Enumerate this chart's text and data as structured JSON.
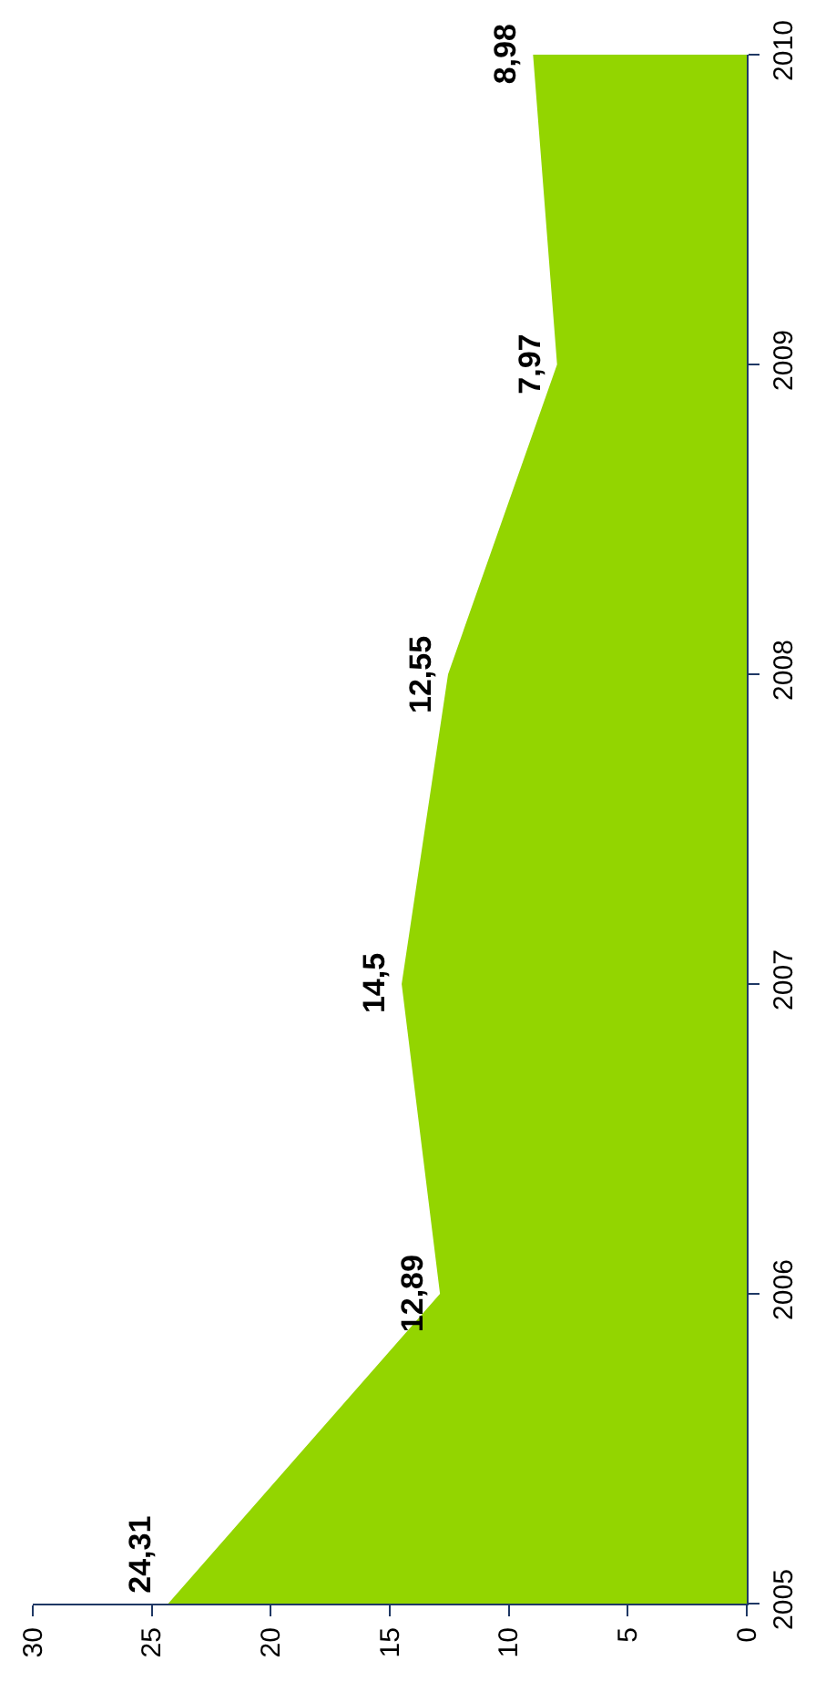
{
  "chart_data": {
    "type": "area",
    "orientation": "horizontal",
    "x": [
      2005,
      2006,
      2007,
      2008,
      2009,
      2010
    ],
    "values": [
      24.31,
      12.89,
      14.5,
      12.55,
      7.97,
      8.98
    ],
    "value_labels": [
      "24,31",
      "12,89",
      "14,5",
      "12,55",
      "7,97",
      "8,98"
    ],
    "color": "#93d500",
    "xlim": [
      30,
      0
    ],
    "xticks": [
      30,
      25,
      20,
      15,
      10,
      5,
      0
    ],
    "ylim": [
      2005,
      2010
    ],
    "yticks": [
      2005,
      2006,
      2007,
      2008,
      2009,
      2010
    ],
    "grid": false
  }
}
